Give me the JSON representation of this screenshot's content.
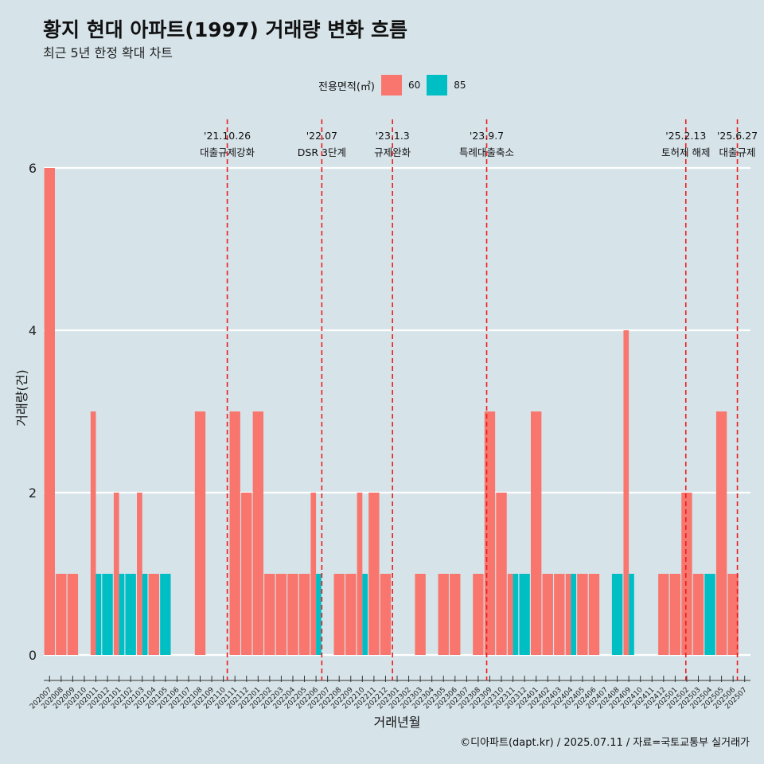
{
  "title": "황지 현대 아파트(1997) 거래량 변화 흐름",
  "subtitle": "최근 5년 한정 확대 차트",
  "caption": "©디아파트(dapt.kr) / 2025.07.11 / 자료=국토교통부 실거래가",
  "legend": {
    "title": "전용면적(㎡)",
    "items": [
      {
        "label": "60",
        "color": "#f8766d"
      },
      {
        "label": "85",
        "color": "#00bfc4"
      }
    ]
  },
  "chart_data": {
    "type": "bar",
    "xlabel": "거래년월",
    "ylabel": "거래량(건)",
    "ylim": [
      0,
      6
    ],
    "yticks": [
      0,
      2,
      4,
      6
    ],
    "categories": [
      "202007",
      "202008",
      "202009",
      "202010",
      "202011",
      "202012",
      "202101",
      "202102",
      "202103",
      "202104",
      "202105",
      "202106",
      "202107",
      "202108",
      "202109",
      "202110",
      "202111",
      "202112",
      "202201",
      "202202",
      "202203",
      "202204",
      "202205",
      "202206",
      "202207",
      "202208",
      "202209",
      "202210",
      "202211",
      "202212",
      "202301",
      "202302",
      "202303",
      "202304",
      "202305",
      "202306",
      "202307",
      "202308",
      "202309",
      "202310",
      "202311",
      "202312",
      "202401",
      "202402",
      "202403",
      "202404",
      "202405",
      "202406",
      "202407",
      "202408",
      "202409",
      "202410",
      "202411",
      "202412",
      "202501",
      "202502",
      "202503",
      "202504",
      "202505",
      "202506",
      "202507"
    ],
    "series": [
      {
        "name": "60",
        "color": "#f8766d",
        "values": [
          6,
          1,
          1,
          0,
          3,
          0,
          2,
          0,
          2,
          1,
          0,
          0,
          0,
          3,
          0,
          0,
          3,
          2,
          3,
          1,
          1,
          1,
          1,
          2,
          0,
          1,
          1,
          2,
          2,
          1,
          0,
          0,
          1,
          0,
          1,
          1,
          0,
          1,
          3,
          2,
          1,
          0,
          3,
          1,
          1,
          1,
          1,
          1,
          0,
          0,
          4,
          0,
          0,
          1,
          1,
          2,
          1,
          0,
          3,
          1,
          0
        ]
      },
      {
        "name": "85",
        "color": "#00bfc4",
        "values": [
          0,
          0,
          0,
          0,
          1,
          1,
          1,
          1,
          1,
          0,
          1,
          0,
          0,
          0,
          0,
          0,
          0,
          0,
          0,
          0,
          0,
          0,
          0,
          1,
          0,
          0,
          0,
          1,
          0,
          0,
          0,
          0,
          0,
          0,
          0,
          0,
          0,
          0,
          0,
          0,
          1,
          1,
          0,
          0,
          0,
          1,
          0,
          0,
          0,
          1,
          1,
          0,
          0,
          0,
          0,
          0,
          0,
          1,
          0,
          0,
          0
        ]
      }
    ],
    "annotations": [
      {
        "date": "'21.10.26",
        "label": "대출규제강화",
        "after_month": "202110",
        "fraction": 0.84
      },
      {
        "date": "'22.07",
        "label": "DSR 3단계",
        "after_month": "202207",
        "fraction": 0.0
      },
      {
        "date": "'23.1.3",
        "label": "규제완화",
        "after_month": "202301",
        "fraction": 0.1
      },
      {
        "date": "'23.9.7",
        "label": "특례대출축소",
        "after_month": "202309",
        "fraction": 0.23
      },
      {
        "date": "'25.2.13",
        "label": "토허제 해제",
        "after_month": "202502",
        "fraction": 0.42
      },
      {
        "date": "'25.6.27",
        "label": "대출규제",
        "after_month": "202506",
        "fraction": 0.87
      }
    ],
    "grid": "horizontal",
    "legend_position": "top"
  }
}
